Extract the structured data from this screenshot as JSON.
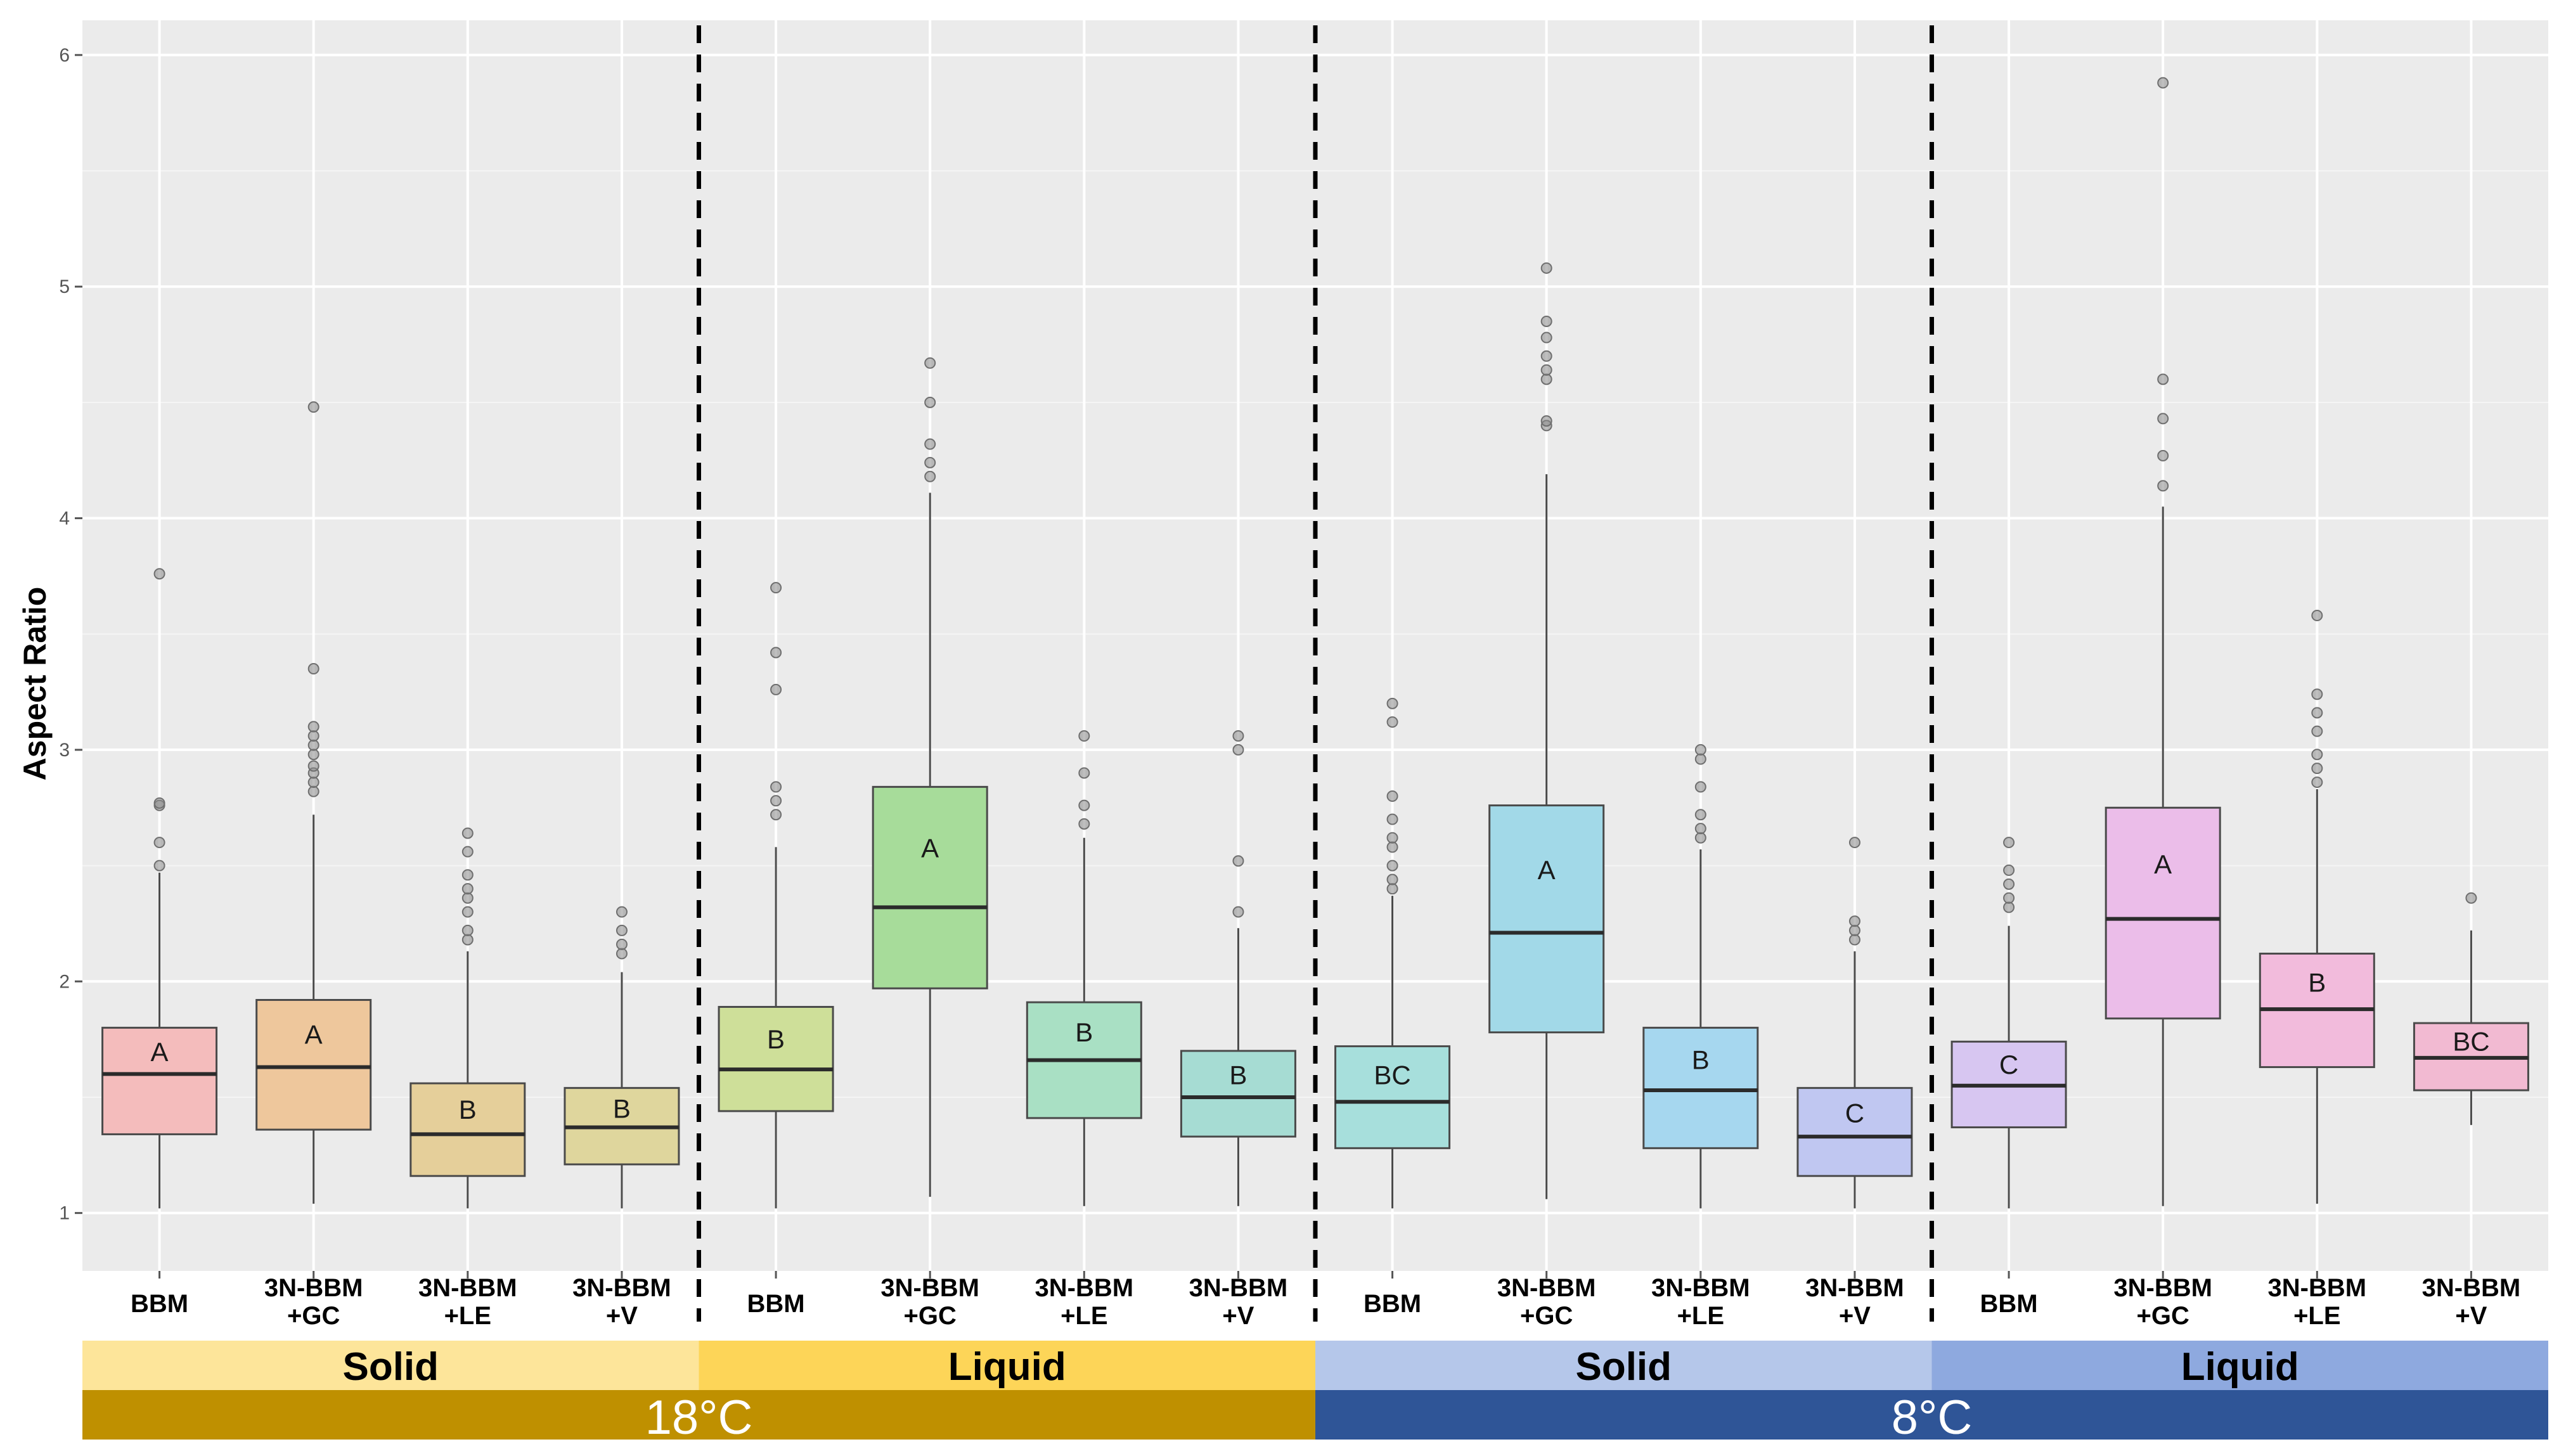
{
  "chart_data": {
    "type": "box",
    "title": "",
    "ylabel": "Aspect Ratio",
    "xlabel": "",
    "ylim": [
      0.75,
      6.15
    ],
    "yticks": [
      1,
      2,
      3,
      4,
      5,
      6
    ],
    "grid": true,
    "groups": [
      {
        "temperature": "18°C",
        "media": "Solid",
        "color": "#f4c38f"
      },
      {
        "temperature": "18°C",
        "media": "Liquid",
        "color": "#b9d98a"
      },
      {
        "temperature": "8°C",
        "media": "Solid",
        "color": "#8fd6df"
      },
      {
        "temperature": "8°C",
        "media": "Liquid",
        "color": "#e6aee4"
      }
    ],
    "boxes": [
      {
        "group": 0,
        "label": "BBM",
        "letter": "A",
        "q1": 1.34,
        "median": 1.6,
        "q3": 1.8,
        "whisker_low": 1.02,
        "whisker_high": 2.47,
        "outliers": [
          2.5,
          2.6,
          2.76,
          2.77,
          3.76
        ],
        "fill": "#f4bcbc"
      },
      {
        "group": 0,
        "label": "3N-BBM\n+GC",
        "letter": "A",
        "q1": 1.36,
        "median": 1.63,
        "q3": 1.92,
        "whisker_low": 1.04,
        "whisker_high": 2.72,
        "outliers": [
          2.82,
          2.86,
          2.9,
          2.93,
          2.98,
          3.02,
          3.06,
          3.1,
          3.35,
          4.48
        ],
        "fill": "#eec79c"
      },
      {
        "group": 0,
        "label": "3N-BBM\n+LE",
        "letter": "B",
        "q1": 1.16,
        "median": 1.34,
        "q3": 1.56,
        "whisker_low": 1.02,
        "whisker_high": 2.13,
        "outliers": [
          2.18,
          2.22,
          2.3,
          2.36,
          2.4,
          2.46,
          2.56,
          2.64
        ],
        "fill": "#e5cf9a"
      },
      {
        "group": 0,
        "label": "3N-BBM\n+V",
        "letter": "B",
        "q1": 1.21,
        "median": 1.37,
        "q3": 1.54,
        "whisker_low": 1.02,
        "whisker_high": 2.04,
        "outliers": [
          2.12,
          2.16,
          2.22,
          2.3
        ],
        "fill": "#dfd69d"
      },
      {
        "group": 1,
        "label": "BBM",
        "letter": "B",
        "q1": 1.44,
        "median": 1.62,
        "q3": 1.89,
        "whisker_low": 1.02,
        "whisker_high": 2.58,
        "outliers": [
          2.72,
          2.78,
          2.84,
          3.26,
          3.42,
          3.7
        ],
        "fill": "#cedf99"
      },
      {
        "group": 1,
        "label": "3N-BBM\n+GC",
        "letter": "A",
        "q1": 1.97,
        "median": 2.32,
        "q3": 2.84,
        "whisker_low": 1.07,
        "whisker_high": 4.11,
        "outliers": [
          4.18,
          4.24,
          4.32,
          4.5,
          4.67
        ],
        "fill": "#a7dc9a"
      },
      {
        "group": 1,
        "label": "3N-BBM\n+LE",
        "letter": "B",
        "q1": 1.41,
        "median": 1.66,
        "q3": 1.91,
        "whisker_low": 1.03,
        "whisker_high": 2.62,
        "outliers": [
          2.68,
          2.76,
          2.9,
          3.06
        ],
        "fill": "#a9e0c4"
      },
      {
        "group": 1,
        "label": "3N-BBM\n+V",
        "letter": "B",
        "q1": 1.33,
        "median": 1.5,
        "q3": 1.7,
        "whisker_low": 1.03,
        "whisker_high": 2.23,
        "outliers": [
          2.3,
          2.52,
          3.0,
          3.06
        ],
        "fill": "#a6dcd3"
      },
      {
        "group": 2,
        "label": "BBM",
        "letter": "BC",
        "q1": 1.28,
        "median": 1.48,
        "q3": 1.72,
        "whisker_low": 1.02,
        "whisker_high": 2.37,
        "outliers": [
          2.4,
          2.44,
          2.5,
          2.58,
          2.62,
          2.7,
          2.8,
          3.12,
          3.2
        ],
        "fill": "#a7dfdc"
      },
      {
        "group": 2,
        "label": "3N-BBM\n+GC",
        "letter": "A",
        "q1": 1.78,
        "median": 2.21,
        "q3": 2.76,
        "whisker_low": 1.06,
        "whisker_high": 4.19,
        "outliers": [
          4.4,
          4.42,
          4.6,
          4.64,
          4.7,
          4.78,
          4.85,
          5.08
        ],
        "fill": "#a2d9e8"
      },
      {
        "group": 2,
        "label": "3N-BBM\n+LE",
        "letter": "B",
        "q1": 1.28,
        "median": 1.53,
        "q3": 1.8,
        "whisker_low": 1.02,
        "whisker_high": 2.57,
        "outliers": [
          2.62,
          2.66,
          2.72,
          2.84,
          2.96,
          3.0
        ],
        "fill": "#a6d7ef"
      },
      {
        "group": 2,
        "label": "3N-BBM\n+V",
        "letter": "C",
        "q1": 1.16,
        "median": 1.33,
        "q3": 1.54,
        "whisker_low": 1.02,
        "whisker_high": 2.13,
        "outliers": [
          2.18,
          2.22,
          2.26,
          2.6
        ],
        "fill": "#c0c7f1"
      },
      {
        "group": 3,
        "label": "BBM",
        "letter": "C",
        "q1": 1.37,
        "median": 1.55,
        "q3": 1.74,
        "whisker_low": 1.02,
        "whisker_high": 2.24,
        "outliers": [
          2.32,
          2.36,
          2.42,
          2.48,
          2.6
        ],
        "fill": "#d7c6f1"
      },
      {
        "group": 3,
        "label": "3N-BBM\n+GC",
        "letter": "A",
        "q1": 1.84,
        "median": 2.27,
        "q3": 2.75,
        "whisker_low": 1.03,
        "whisker_high": 4.05,
        "outliers": [
          4.14,
          4.27,
          4.43,
          4.6,
          5.88
        ],
        "fill": "#ebbde9"
      },
      {
        "group": 3,
        "label": "3N-BBM\n+LE",
        "letter": "B",
        "q1": 1.63,
        "median": 1.88,
        "q3": 2.12,
        "whisker_low": 1.04,
        "whisker_high": 2.83,
        "outliers": [
          2.86,
          2.92,
          2.98,
          3.08,
          3.16,
          3.24,
          3.58
        ],
        "fill": "#f2bbdc"
      },
      {
        "group": 3,
        "label": "3N-BBM\n+V",
        "letter": "BC",
        "q1": 1.53,
        "median": 1.67,
        "q3": 1.82,
        "whisker_low": 1.38,
        "whisker_high": 2.22,
        "outliers": [
          2.36
        ],
        "fill": "#f2bad2"
      }
    ],
    "media_bands": [
      {
        "label": "Solid",
        "groups": [
          0
        ],
        "color": "#fde59a"
      },
      {
        "label": "Liquid",
        "groups": [
          1
        ],
        "color": "#fdd558"
      },
      {
        "label": "Solid",
        "groups": [
          2
        ],
        "color": "#b5c7ea"
      },
      {
        "label": "Liquid",
        "groups": [
          3
        ],
        "color": "#8ea9df"
      }
    ],
    "temperature_bands": [
      {
        "label": "18°C",
        "groups": [
          0,
          1
        ],
        "color": "#bf9000"
      },
      {
        "label": "8°C",
        "groups": [
          2,
          3
        ],
        "color": "#2f5597"
      }
    ]
  }
}
